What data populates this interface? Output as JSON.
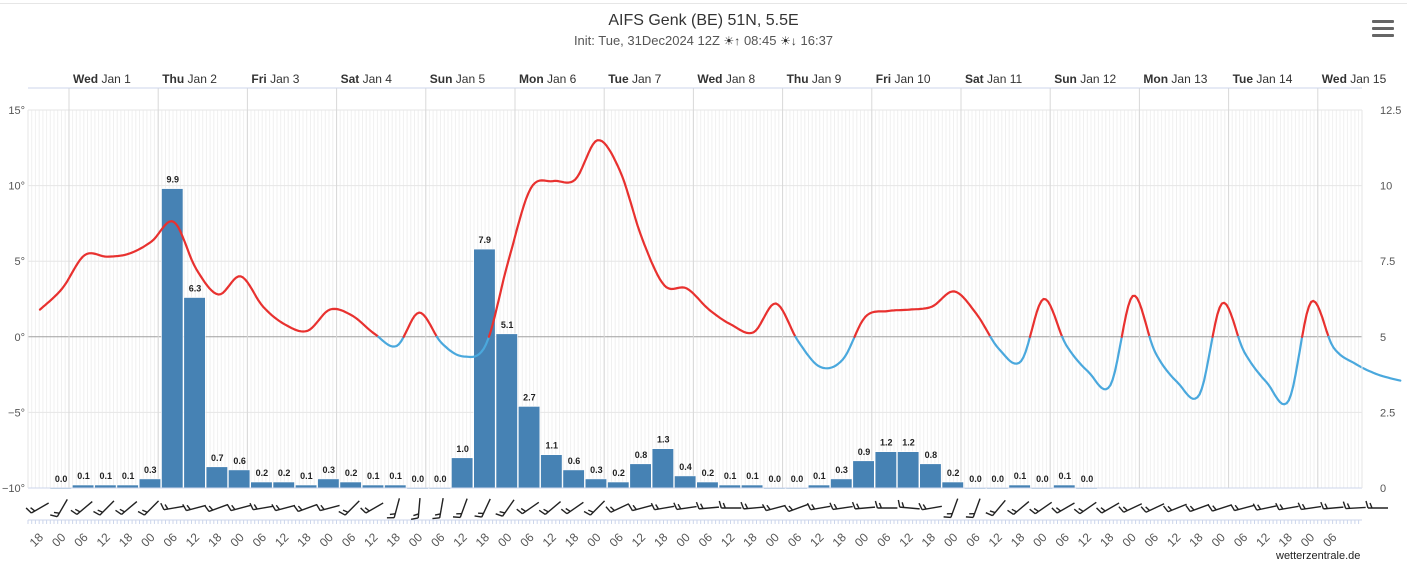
{
  "header": {
    "title": "AIFS Genk (BE) 51N, 5.5E",
    "subtitle_init": "Init: Tue, 31Dec2024 12Z",
    "sunrise": "08:45",
    "sunset": "16:37",
    "sunrise_icon": "sunrise-icon",
    "sunset_icon": "sunset-icon"
  },
  "menu": {
    "icon": "hamburger-menu-icon"
  },
  "credit": "wetterzentrale.de",
  "colors": {
    "bars": "#4682b4",
    "temp_warm": "#e8312f",
    "temp_cold": "#4aa8dd",
    "grid": "#e6e6e6",
    "zero_line": "#a0a0a0"
  },
  "chart_data": {
    "type": "bar+line",
    "title": "AIFS Genk (BE) 51N, 5.5E",
    "y_left": {
      "range": [
        -10,
        15
      ],
      "ticks": [
        "−10°",
        "−5°",
        "0°",
        "5°",
        "10°",
        "15°"
      ]
    },
    "y_right": {
      "range": [
        0,
        12.5
      ],
      "ticks": [
        "0",
        "2.5",
        "5",
        "7.5",
        "10",
        "12.5"
      ]
    },
    "grid": true,
    "legend": "none",
    "day_labels": [
      {
        "day": "Wed",
        "date": "Jan 1"
      },
      {
        "day": "Thu",
        "date": "Jan 2"
      },
      {
        "day": "Fri",
        "date": "Jan 3"
      },
      {
        "day": "Sat",
        "date": "Jan 4"
      },
      {
        "day": "Sun",
        "date": "Jan 5"
      },
      {
        "day": "Mon",
        "date": "Jan 6"
      },
      {
        "day": "Tue",
        "date": "Jan 7"
      },
      {
        "day": "Wed",
        "date": "Jan 8"
      },
      {
        "day": "Thu",
        "date": "Jan 9"
      },
      {
        "day": "Fri",
        "date": "Jan 10"
      },
      {
        "day": "Sat",
        "date": "Jan 11"
      },
      {
        "day": "Sun",
        "date": "Jan 12"
      },
      {
        "day": "Mon",
        "date": "Jan 13"
      },
      {
        "day": "Tue",
        "date": "Jan 14"
      },
      {
        "day": "Wed",
        "date": "Jan 15"
      }
    ],
    "hour_labels": [
      "18",
      "00",
      "06",
      "12",
      "18",
      "00",
      "06",
      "12",
      "18",
      "00",
      "06",
      "12",
      "18",
      "00",
      "06",
      "12",
      "18",
      "00",
      "06",
      "12",
      "18",
      "00",
      "06",
      "12",
      "18",
      "00",
      "06",
      "12",
      "18",
      "00",
      "06",
      "12",
      "18",
      "00",
      "06",
      "12",
      "18",
      "00",
      "06",
      "12",
      "18",
      "00",
      "06",
      "12",
      "18",
      "00",
      "06",
      "12",
      "18",
      "00",
      "06",
      "12",
      "18",
      "00",
      "06",
      "12",
      "18",
      "00",
      "06"
    ],
    "precip_labels": [
      "0.0",
      "0.1",
      "0.1",
      "0.1",
      "0.3",
      "9.9",
      "6.3",
      "0.7",
      "0.6",
      "0.2",
      "0.2",
      "0.1",
      "0.3",
      "0.2",
      "0.1",
      "0.1",
      "0.0",
      "0.0",
      "1.0",
      "7.9",
      "5.1",
      "2.7",
      "1.1",
      "0.6",
      "0.3",
      "0.2",
      "0.8",
      "1.3",
      "0.4",
      "0.2",
      "0.1",
      "0.1",
      "0.0",
      "0.0",
      "0.1",
      "0.3",
      "0.9",
      "1.2",
      "1.2",
      "0.8",
      "0.2",
      "0.0",
      "0.0",
      "0.1",
      "0.0",
      "0.1",
      "0.0"
    ],
    "precip_values": [
      0.0,
      0.1,
      0.1,
      0.1,
      0.3,
      9.9,
      6.3,
      0.7,
      0.6,
      0.2,
      0.2,
      0.1,
      0.3,
      0.2,
      0.1,
      0.1,
      0.0,
      0.0,
      1.0,
      7.9,
      5.1,
      2.7,
      1.1,
      0.6,
      0.3,
      0.2,
      0.8,
      1.3,
      0.4,
      0.2,
      0.1,
      0.1,
      0.0,
      0.0,
      0.1,
      0.3,
      0.9,
      1.2,
      1.2,
      0.8,
      0.2,
      0.0,
      0.0,
      0.1,
      0.0,
      0.1,
      0.0
    ],
    "temperature_points": [
      [
        0,
        1.8
      ],
      [
        1,
        3.2
      ],
      [
        2,
        5.4
      ],
      [
        3,
        5.3
      ],
      [
        4,
        5.5
      ],
      [
        5,
        6.3
      ],
      [
        6,
        7.6
      ],
      [
        7,
        4.5
      ],
      [
        8,
        2.8
      ],
      [
        9,
        4.0
      ],
      [
        10,
        2.0
      ],
      [
        11,
        0.8
      ],
      [
        12,
        0.4
      ],
      [
        13,
        1.8
      ],
      [
        14,
        1.4
      ],
      [
        15,
        0.2
      ],
      [
        16,
        -0.6
      ],
      [
        17,
        1.6
      ],
      [
        18,
        -0.4
      ],
      [
        19,
        -1.3
      ],
      [
        20,
        -0.5
      ],
      [
        21,
        5.0
      ],
      [
        22,
        9.8
      ],
      [
        23,
        10.3
      ],
      [
        24,
        10.4
      ],
      [
        25,
        13.0
      ],
      [
        26,
        11.0
      ],
      [
        27,
        6.5
      ],
      [
        28,
        3.4
      ],
      [
        29,
        3.2
      ],
      [
        30,
        1.8
      ],
      [
        31,
        0.8
      ],
      [
        32,
        0.3
      ],
      [
        33,
        2.2
      ],
      [
        34,
        -0.3
      ],
      [
        35,
        -2.0
      ],
      [
        36,
        -1.5
      ],
      [
        37,
        1.3
      ],
      [
        38,
        1.7
      ],
      [
        39,
        1.8
      ],
      [
        40,
        2.0
      ],
      [
        41,
        3.0
      ],
      [
        42,
        1.5
      ],
      [
        43,
        -0.8
      ],
      [
        44,
        -1.6
      ],
      [
        45,
        2.5
      ],
      [
        46,
        -0.5
      ],
      [
        47,
        -2.3
      ],
      [
        48,
        -3.2
      ],
      [
        49,
        2.7
      ],
      [
        50,
        -1.0
      ],
      [
        51,
        -3.0
      ],
      [
        52,
        -3.8
      ],
      [
        53,
        2.2
      ],
      [
        54,
        -1.0
      ],
      [
        55,
        -3.0
      ],
      [
        56,
        -4.2
      ],
      [
        57,
        2.3
      ],
      [
        58,
        -0.7
      ],
      [
        59,
        -1.8
      ],
      [
        60,
        -2.5
      ],
      [
        61,
        -2.9
      ]
    ],
    "wind_angles": [
      30,
      60,
      40,
      45,
      40,
      45,
      10,
      15,
      20,
      15,
      10,
      15,
      20,
      15,
      45,
      30,
      75,
      85,
      80,
      70,
      65,
      55,
      35,
      40,
      35,
      45,
      25,
      15,
      10,
      8,
      5,
      0,
      5,
      15,
      20,
      10,
      8,
      5,
      0,
      -5,
      10,
      70,
      70,
      50,
      40,
      35,
      30,
      35,
      30,
      25,
      25,
      22,
      20,
      18,
      15,
      12,
      10,
      8,
      5,
      3,
      0
    ]
  }
}
